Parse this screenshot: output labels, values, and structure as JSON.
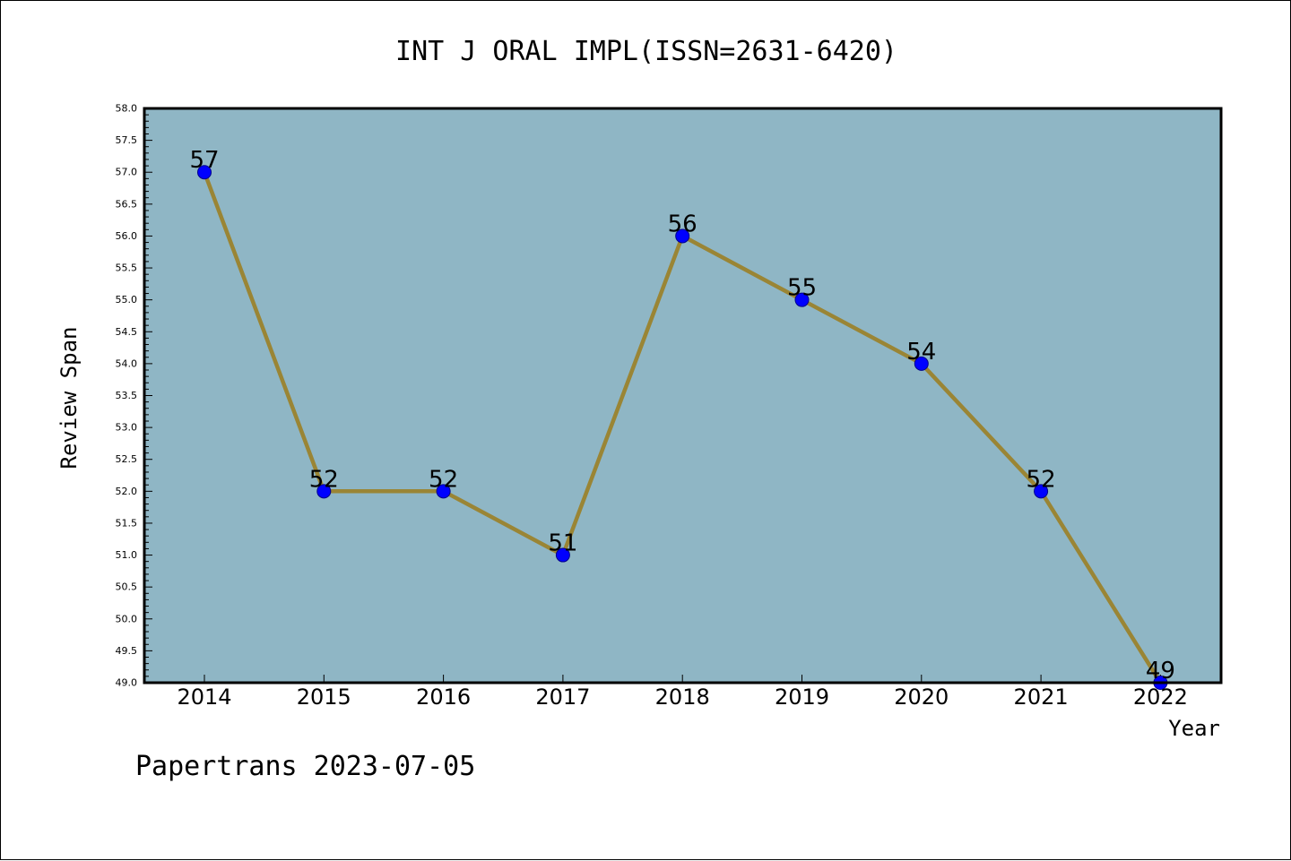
{
  "chart_data": {
    "type": "line",
    "title": "INT J ORAL IMPL(ISSN=2631-6420)",
    "xlabel": "Year",
    "ylabel": "Review Span",
    "x": [
      "2014",
      "2015",
      "2016",
      "2017",
      "2018",
      "2019",
      "2020",
      "2021",
      "2022"
    ],
    "series": [
      {
        "values": [
          57,
          52,
          52,
          51,
          56,
          55,
          54,
          52,
          49
        ]
      }
    ],
    "data_labels": [
      "57",
      "52",
      "52",
      "51",
      "56",
      "55",
      "54",
      "52",
      "49"
    ],
    "ylim": [
      49.0,
      58.0
    ],
    "yticks": [
      "49.0",
      "49.5",
      "50.0",
      "50.5",
      "51.0",
      "51.5",
      "52.0",
      "52.5",
      "53.0",
      "53.5",
      "54.0",
      "54.5",
      "55.0",
      "55.5",
      "56.0",
      "56.5",
      "57.0",
      "57.5",
      "58.0"
    ],
    "grid": false,
    "colors": {
      "plot_background": "#8fb6c5",
      "line": "#9a8535",
      "marker_fill": "#0000ff",
      "marker_edge": "#00008b"
    }
  },
  "footer": {
    "watermark": "Papertrans 2023-07-05"
  }
}
